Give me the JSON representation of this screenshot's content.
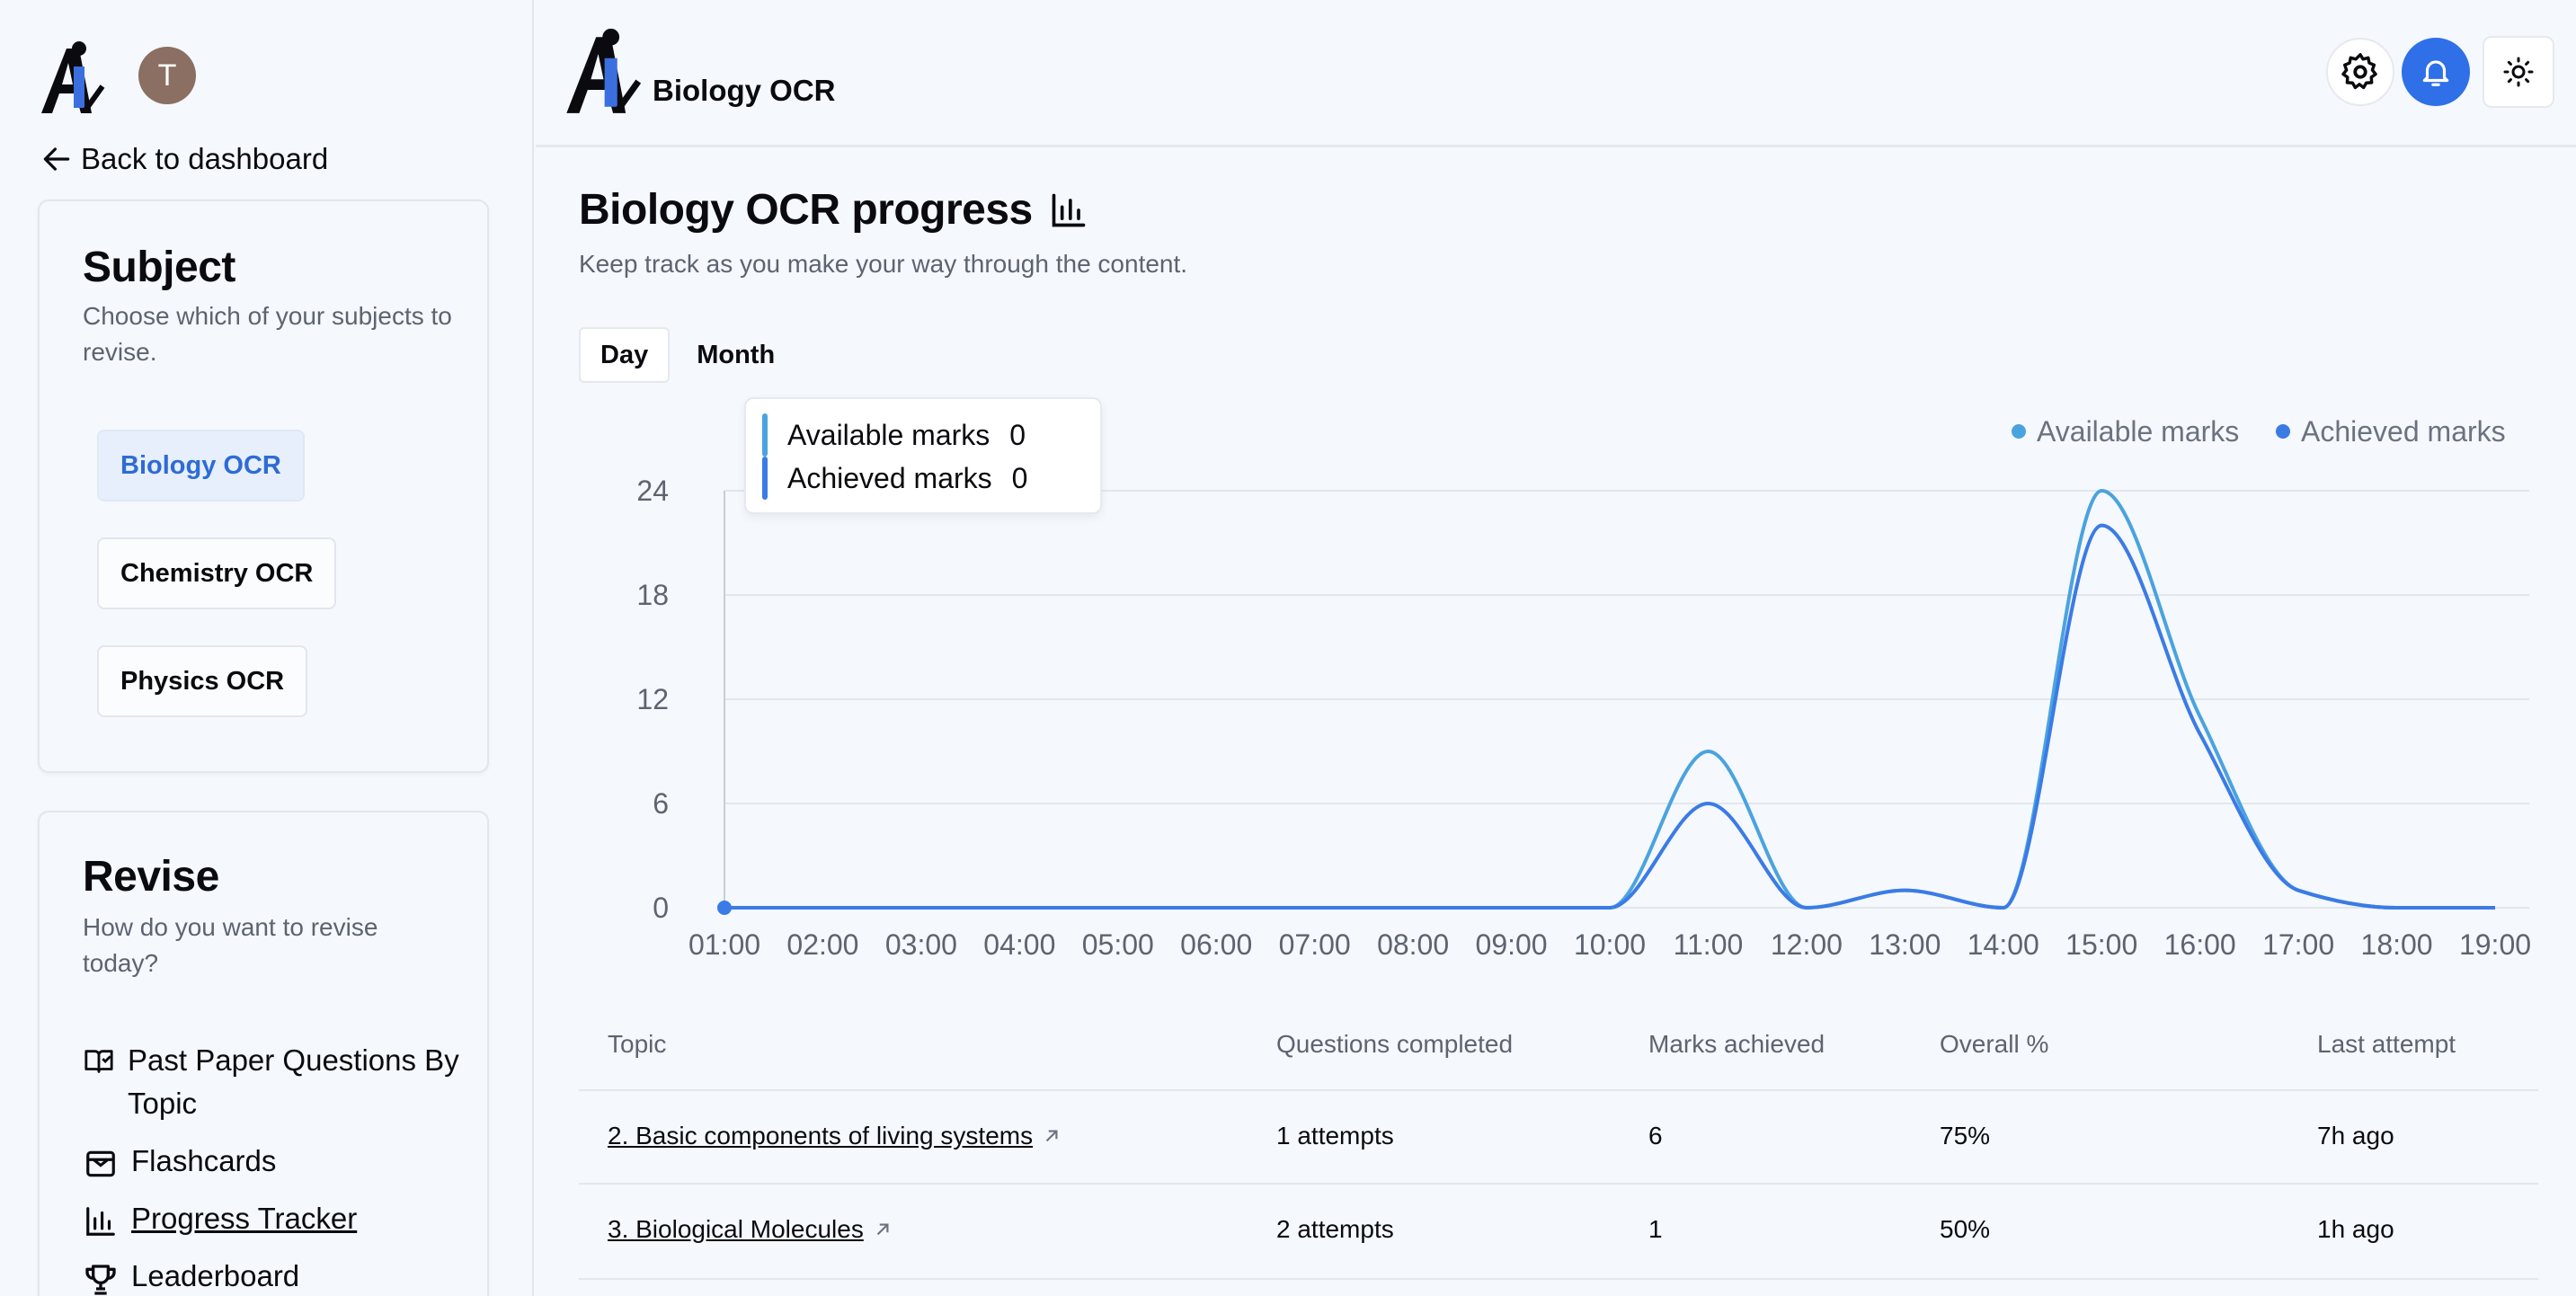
{
  "sidebar": {
    "avatar_initial": "T",
    "back_label": "Back to dashboard",
    "subject_card": {
      "title": "Subject",
      "subtitle": "Choose which of your subjects to revise.",
      "subjects": [
        {
          "label": "Biology OCR",
          "active": true
        },
        {
          "label": "Chemistry OCR",
          "active": false
        },
        {
          "label": "Physics OCR",
          "active": false
        }
      ]
    },
    "revise_card": {
      "title": "Revise",
      "subtitle": "How do you want to revise today?",
      "items": [
        {
          "label": "Past Paper Questions By Topic",
          "icon": "book-icon"
        },
        {
          "label": "Flashcards",
          "icon": "flashcards-icon"
        },
        {
          "label": "Progress Tracker",
          "icon": "bar-chart-icon",
          "active": true
        },
        {
          "label": "Leaderboard",
          "icon": "trophy-icon"
        }
      ]
    }
  },
  "header": {
    "app_title": "Biology OCR"
  },
  "main": {
    "title": "Biology OCR progress",
    "subtitle": "Keep track as you make your way through the content.",
    "tabs": [
      {
        "label": "Day",
        "active": true
      },
      {
        "label": "Month",
        "active": false
      }
    ],
    "tooltip": {
      "rows": [
        {
          "label": "Available marks",
          "value": "0"
        },
        {
          "label": "Achieved marks",
          "value": "0"
        }
      ]
    }
  },
  "colors": {
    "available": "#4aa3df",
    "achieved": "#3b7be6",
    "accent": "#2f6fe8"
  },
  "chart_data": {
    "type": "line",
    "x": [
      "01:00",
      "02:00",
      "03:00",
      "04:00",
      "05:00",
      "06:00",
      "07:00",
      "08:00",
      "09:00",
      "10:00",
      "11:00",
      "12:00",
      "13:00",
      "14:00",
      "15:00",
      "16:00",
      "17:00",
      "18:00",
      "19:00"
    ],
    "series": [
      {
        "name": "Available marks",
        "values": [
          0,
          0,
          0,
          0,
          0,
          0,
          0,
          0,
          0,
          0,
          9,
          0,
          1,
          0,
          24,
          11,
          1,
          0,
          0
        ]
      },
      {
        "name": "Achieved marks",
        "values": [
          0,
          0,
          0,
          0,
          0,
          0,
          0,
          0,
          0,
          0,
          6,
          0,
          1,
          0,
          22,
          10,
          1,
          0,
          0
        ]
      }
    ],
    "yticks": [
      0,
      6,
      12,
      18,
      24
    ],
    "ylim": [
      0,
      24
    ],
    "grid": true,
    "legend": "top-right",
    "smooth": true
  },
  "table": {
    "headers": [
      "Topic",
      "Questions completed",
      "Marks achieved",
      "Overall %",
      "Last attempt"
    ],
    "rows": [
      [
        "2. Basic components of living systems",
        "1 attempts",
        "6",
        "75%",
        "7h ago"
      ],
      [
        "3. Biological Molecules",
        "2 attempts",
        "1",
        "50%",
        "1h ago"
      ]
    ]
  }
}
